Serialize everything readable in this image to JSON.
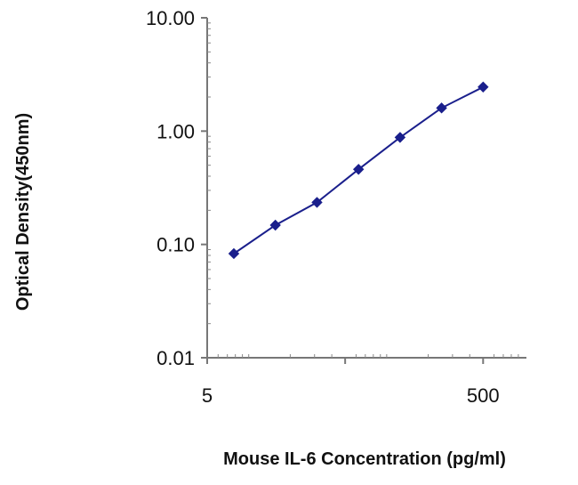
{
  "chart_data": {
    "type": "line",
    "title": "",
    "xlabel": "Mouse IL-6 Concentration (pg/ml)",
    "ylabel": "Optical Density(450nm)",
    "x_scale": "log",
    "y_scale": "log",
    "xlim": [
      5,
      1000
    ],
    "ylim": [
      0.01,
      10
    ],
    "x_tick_labels": [
      {
        "value": 5,
        "label": "5"
      },
      {
        "value": 500,
        "label": "500"
      }
    ],
    "y_tick_labels": [
      {
        "value": 10,
        "label": "10.00"
      },
      {
        "value": 1,
        "label": "1.00"
      },
      {
        "value": 0.1,
        "label": "0.10"
      },
      {
        "value": 0.01,
        "label": "0.01"
      }
    ],
    "grid": false,
    "legend": "none",
    "series": [
      {
        "x": [
          7.8,
          15.6,
          31.25,
          62.5,
          125,
          250,
          500
        ],
        "y": [
          0.083,
          0.148,
          0.235,
          0.46,
          0.88,
          1.6,
          2.45
        ],
        "color": "#1a1f8c",
        "marker": "diamond"
      }
    ]
  }
}
